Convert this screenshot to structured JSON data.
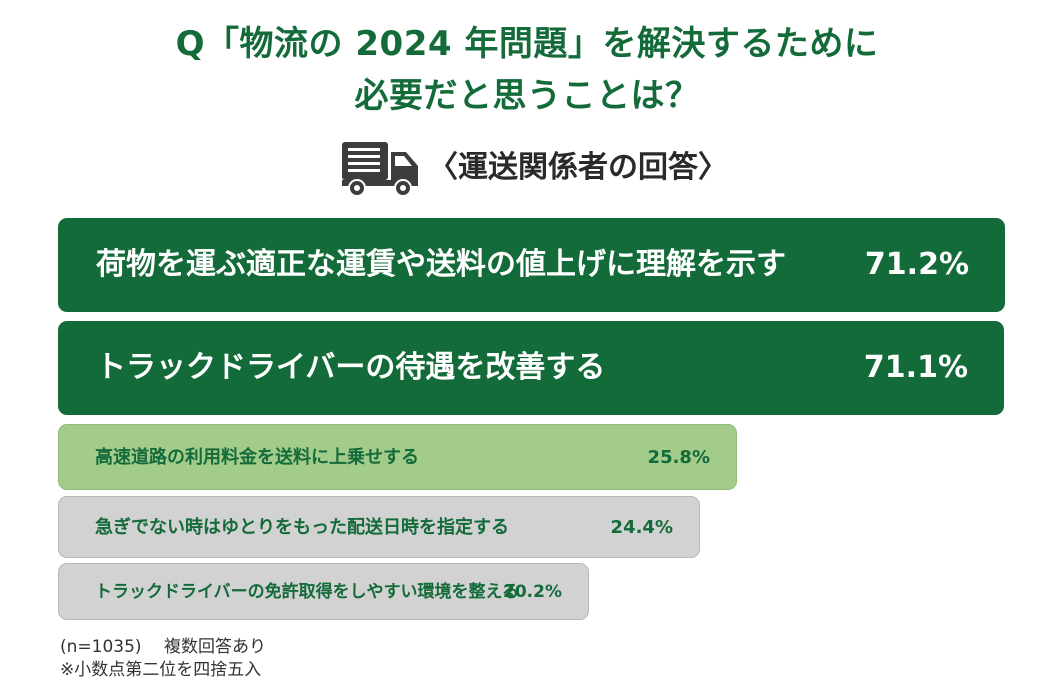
{
  "title": {
    "line1": "Q「物流の 2024 年問題」を解決するために",
    "line2": "必要だと思うことは？"
  },
  "subtitle": {
    "icon": "truck-icon",
    "text": "〈運送関係者の回答〉"
  },
  "colors": {
    "title_green": "#146b3a",
    "dark_green": "#146b3a",
    "light_green": "#a3cc8b",
    "gray": "#d2d2d2",
    "bar_text_small": "#146b3a",
    "bar_text_large": "#ffffff"
  },
  "chart_data": {
    "type": "bar",
    "orientation": "horizontal",
    "categories": [
      "荷物を運ぶ適正な運賃や送料の値上げに理解を示す",
      "トラックドライバーの待遇を改善する",
      "高速道路の利用料金を送料に上乗せする",
      "急ぎでない時はゆとりをもった配送日時を指定する",
      "トラックドライバーの免許取得をしやすい環境を整える"
    ],
    "values": [
      71.2,
      71.1,
      25.8,
      24.4,
      20.2
    ],
    "value_labels": [
      "71.2%",
      "71.1%",
      "25.8%",
      "24.4%",
      "20.2%"
    ],
    "bar_colors": [
      "#146b3a",
      "#146b3a",
      "#a3cc8b",
      "#d2d2d2",
      "#d2d2d2"
    ],
    "title": "",
    "xlabel": "",
    "ylabel": "",
    "unit": "%",
    "legend": "none",
    "grid": false
  },
  "footnotes": {
    "sample": "(n=1035)　 複数回答あり",
    "rounding": "※小数点第二位を四捨五入"
  }
}
